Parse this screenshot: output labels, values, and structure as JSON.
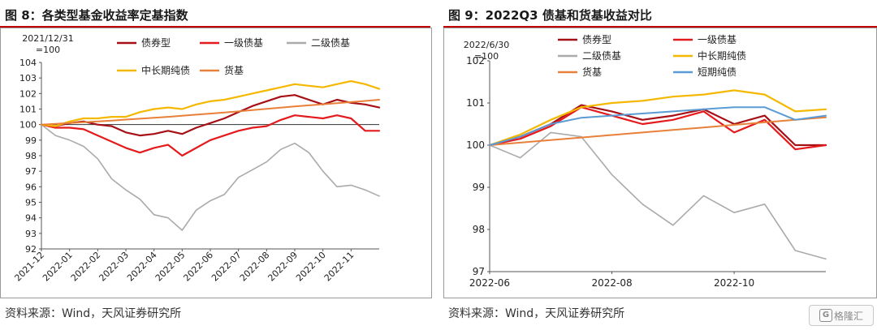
{
  "figures": {
    "left": {
      "title": "图 8：各类型基金收益率定基指数",
      "source": "资料来源：Wind，天风证券研究所"
    },
    "right": {
      "title": "图 9：2022Q3 债基和货基收益对比",
      "source": "资料来源：Wind，天风证券研究所"
    }
  },
  "watermark": {
    "glyph": "G",
    "text": "格隆汇"
  },
  "chart_data": [
    {
      "id": "left",
      "type": "line",
      "base_note": [
        "2021/12/31",
        "=100"
      ],
      "x": [
        "2021-12",
        "2021-12-15",
        "2022-01",
        "2022-01-15",
        "2022-02",
        "2022-02-15",
        "2022-03",
        "2022-03-15",
        "2022-04",
        "2022-04-15",
        "2022-05",
        "2022-05-15",
        "2022-06",
        "2022-06-15",
        "2022-07",
        "2022-07-15",
        "2022-08",
        "2022-08-15",
        "2022-09",
        "2022-09-15",
        "2022-10",
        "2022-10-15",
        "2022-11",
        "2022-11-15",
        "2022-11-30"
      ],
      "x_tick_labels": [
        "2021-12",
        "2022-01",
        "2022-02",
        "2022-03",
        "2022-04",
        "2022-05",
        "2022-06",
        "2022-07",
        "2022-08",
        "2022-09",
        "2022-10",
        "2022-11"
      ],
      "ylim": [
        92,
        104
      ],
      "y_ticks": [
        92,
        93,
        94,
        95,
        96,
        97,
        98,
        99,
        100,
        101,
        102,
        103,
        104
      ],
      "reference_line": 100,
      "grid": false,
      "legend_position": "top",
      "series": [
        {
          "name": "债券型",
          "color": "#a50f15",
          "width": 2.2,
          "values": [
            100.0,
            99.9,
            100.1,
            100.2,
            100.0,
            99.9,
            99.5,
            99.3,
            99.4,
            99.6,
            99.4,
            99.8,
            100.1,
            100.4,
            100.8,
            101.2,
            101.5,
            101.8,
            101.9,
            101.6,
            101.3,
            101.6,
            101.4,
            101.3,
            101.1
          ]
        },
        {
          "name": "一级债基",
          "color": "#e41a1c",
          "width": 2.2,
          "values": [
            100.0,
            99.8,
            99.8,
            99.7,
            99.3,
            98.9,
            98.5,
            98.2,
            98.5,
            98.7,
            98.0,
            98.5,
            99.0,
            99.3,
            99.6,
            99.8,
            99.9,
            100.3,
            100.6,
            100.5,
            100.4,
            100.6,
            100.4,
            99.6,
            99.6
          ]
        },
        {
          "name": "二级债基",
          "color": "#aaaaaa",
          "width": 1.6,
          "values": [
            100.0,
            99.3,
            99.0,
            98.6,
            97.8,
            96.5,
            95.8,
            95.2,
            94.2,
            94.0,
            93.2,
            94.5,
            95.1,
            95.5,
            96.6,
            97.1,
            97.6,
            98.4,
            98.8,
            98.2,
            97.0,
            96.0,
            96.1,
            95.8,
            95.4
          ]
        },
        {
          "name": "中长期纯债",
          "color": "#f5b800",
          "width": 2.2,
          "values": [
            100.0,
            99.9,
            100.2,
            100.4,
            100.4,
            100.5,
            100.5,
            100.8,
            101.0,
            101.1,
            101.0,
            101.3,
            101.5,
            101.6,
            101.8,
            102.0,
            102.2,
            102.4,
            102.6,
            102.5,
            102.4,
            102.6,
            102.8,
            102.6,
            102.3
          ]
        },
        {
          "name": "货基",
          "color": "#e8803a",
          "width": 2.0,
          "values": [
            100.0,
            100.05,
            100.1,
            100.15,
            100.2,
            100.26,
            100.32,
            100.38,
            100.44,
            100.5,
            100.57,
            100.64,
            100.71,
            100.78,
            100.85,
            100.93,
            101.01,
            101.09,
            101.17,
            101.24,
            101.31,
            101.38,
            101.45,
            101.52,
            101.6
          ]
        }
      ]
    },
    {
      "id": "right",
      "type": "line",
      "base_note": [
        "2022/6/30",
        "=100"
      ],
      "x": [
        "2022-06",
        "2022-06-15",
        "2022-07",
        "2022-07-15",
        "2022-08",
        "2022-08-15",
        "2022-09",
        "2022-09-15",
        "2022-10",
        "2022-10-15",
        "2022-11",
        "2022-11-15"
      ],
      "x_tick_labels": [
        "2022-06",
        "2022-08",
        "2022-10"
      ],
      "ylim": [
        97,
        102
      ],
      "y_ticks": [
        97,
        98,
        99,
        100,
        101,
        102
      ],
      "grid": false,
      "legend_position": "top",
      "series": [
        {
          "name": "债券型",
          "color": "#a50f15",
          "width": 2.2,
          "values": [
            100.0,
            100.2,
            100.5,
            100.95,
            100.8,
            100.6,
            100.7,
            100.85,
            100.5,
            100.7,
            100.0,
            100.0
          ]
        },
        {
          "name": "一级债基",
          "color": "#e41a1c",
          "width": 2.2,
          "values": [
            100.0,
            100.15,
            100.45,
            100.9,
            100.7,
            100.5,
            100.6,
            100.8,
            100.3,
            100.6,
            99.9,
            100.0
          ]
        },
        {
          "name": "二级债基",
          "color": "#aaaaaa",
          "width": 1.6,
          "values": [
            100.0,
            99.7,
            100.3,
            100.2,
            99.3,
            98.6,
            98.1,
            98.8,
            98.4,
            98.6,
            97.5,
            97.3
          ]
        },
        {
          "name": "中长期纯债",
          "color": "#f5b800",
          "width": 2.2,
          "values": [
            100.0,
            100.25,
            100.6,
            100.9,
            101.0,
            101.05,
            101.15,
            101.2,
            101.3,
            101.2,
            100.8,
            100.85
          ]
        },
        {
          "name": "货基",
          "color": "#e8803a",
          "width": 2.0,
          "values": [
            100.0,
            100.06,
            100.12,
            100.18,
            100.24,
            100.3,
            100.36,
            100.42,
            100.48,
            100.54,
            100.6,
            100.66
          ]
        },
        {
          "name": "短期纯债",
          "color": "#5b9bd5",
          "width": 2.0,
          "values": [
            100.0,
            100.2,
            100.5,
            100.65,
            100.7,
            100.75,
            100.8,
            100.85,
            100.9,
            100.9,
            100.6,
            100.7
          ]
        }
      ]
    }
  ]
}
